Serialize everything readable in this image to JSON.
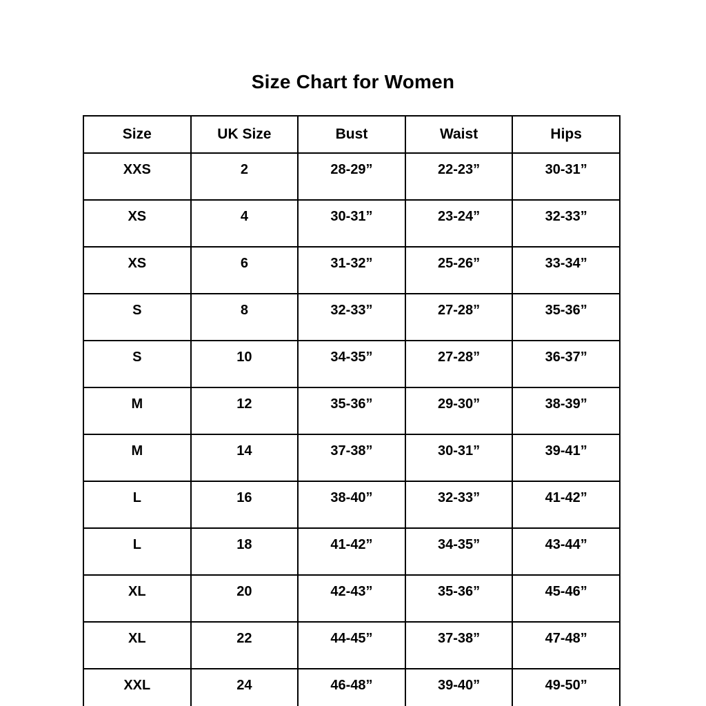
{
  "page": {
    "title": "Size Chart for Women"
  },
  "chart_data": {
    "type": "table",
    "title": "Size Chart for Women",
    "columns": [
      "Size",
      "UK Size",
      "Bust",
      "Waist",
      "Hips"
    ],
    "rows": [
      [
        "XXS",
        "2",
        "28-29”",
        "22-23”",
        "30-31”"
      ],
      [
        "XS",
        "4",
        "30-31”",
        "23-24”",
        "32-33”"
      ],
      [
        "XS",
        "6",
        "31-32”",
        "25-26”",
        "33-34”"
      ],
      [
        "S",
        "8",
        "32-33”",
        "27-28”",
        "35-36”"
      ],
      [
        "S",
        "10",
        "34-35”",
        "27-28”",
        "36-37”"
      ],
      [
        "M",
        "12",
        "35-36”",
        "29-30”",
        "38-39”"
      ],
      [
        "M",
        "14",
        "37-38”",
        "30-31”",
        "39-41”"
      ],
      [
        "L",
        "16",
        "38-40”",
        "32-33”",
        "41-42”"
      ],
      [
        "L",
        "18",
        "41-42”",
        "34-35”",
        "43-44”"
      ],
      [
        "XL",
        "20",
        "42-43”",
        "35-36”",
        "45-46”"
      ],
      [
        "XL",
        "22",
        "44-45”",
        "37-38”",
        "47-48”"
      ],
      [
        "XXL",
        "24",
        "46-48”",
        "39-40”",
        "49-50”"
      ]
    ],
    "layout": {
      "legend": "none",
      "grid": "full-borders"
    },
    "colors": {
      "text": "#000000",
      "border": "#000000",
      "background": "#ffffff"
    }
  }
}
